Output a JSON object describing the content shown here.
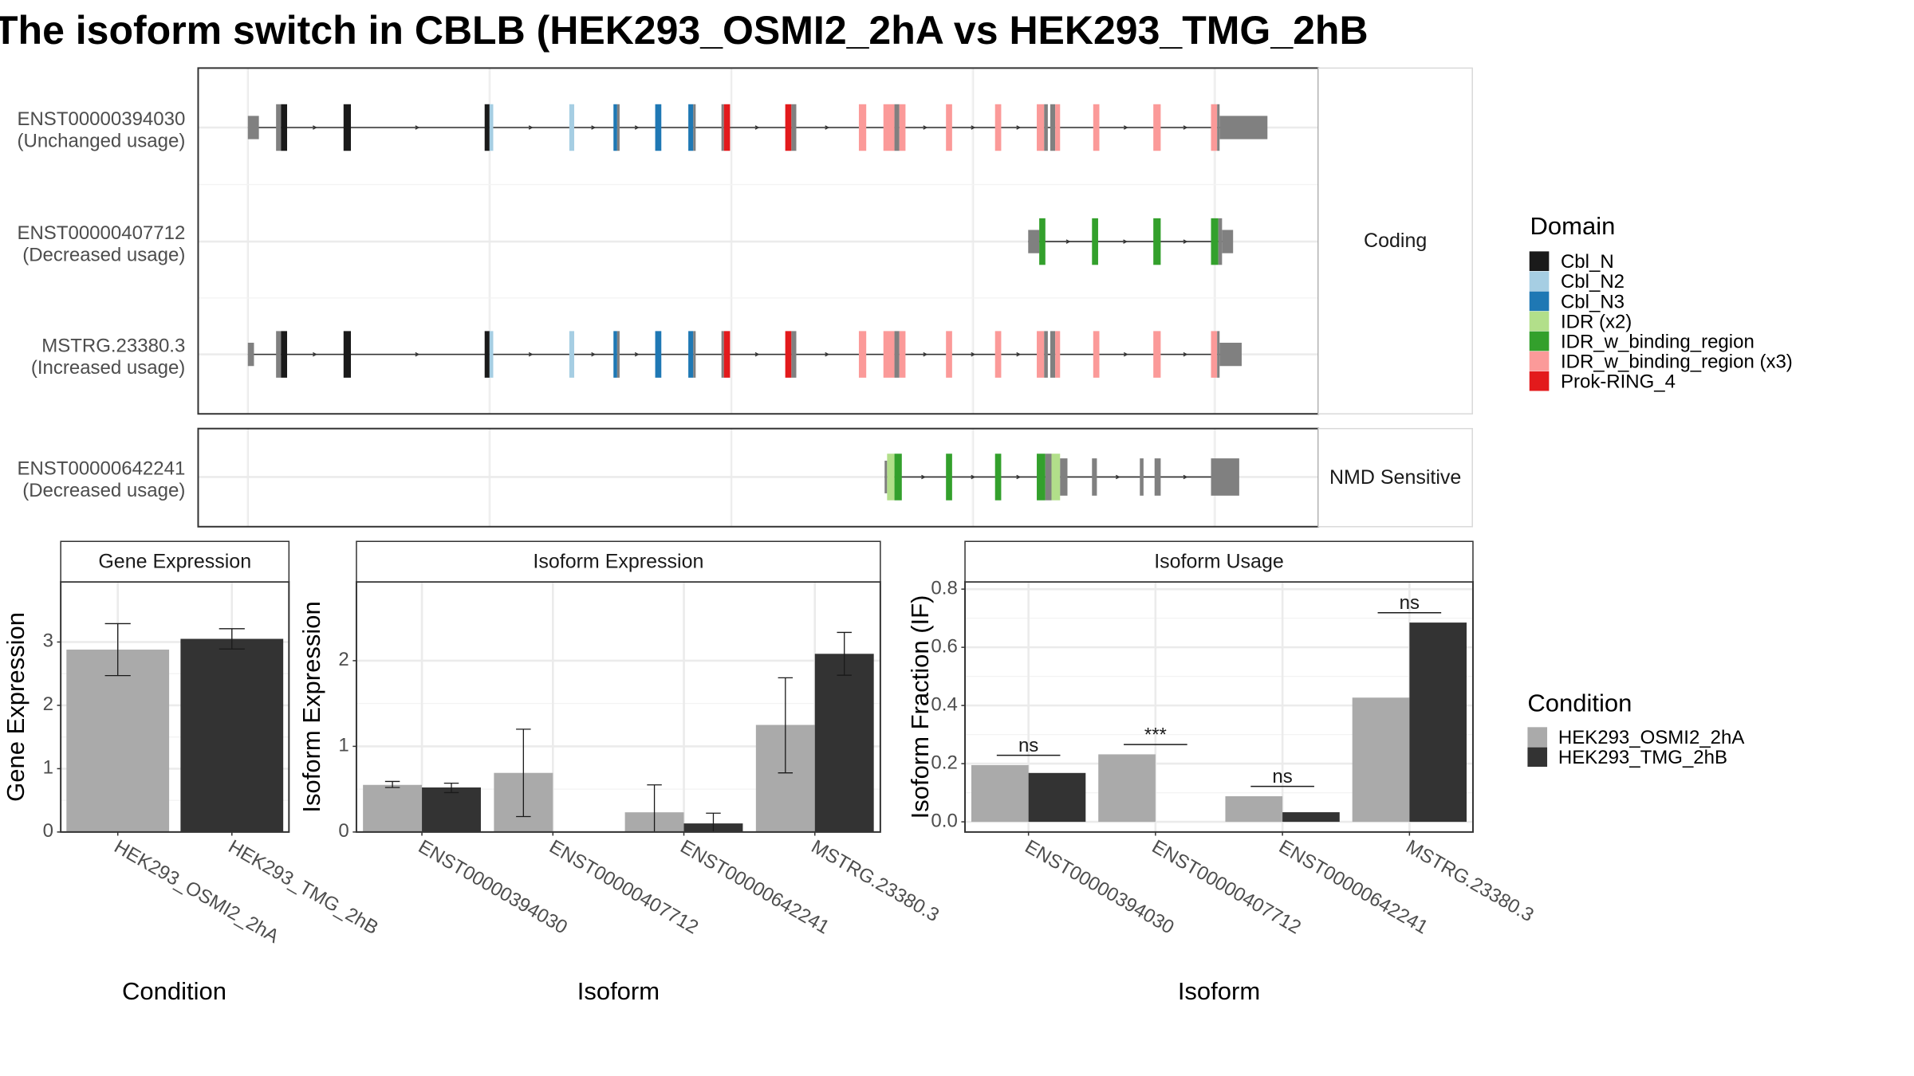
{
  "title": "The isoform switch in CBLB (HEK293_OSMI2_2hA vs HEK293_TMG_2hB",
  "colors": {
    "Cbl_N": "#1a1a1a",
    "Cbl_N2": "#a6cee3",
    "Cbl_N3": "#1f78b4",
    "IDR (x2)": "#b2df8a",
    "IDR_w_binding_region": "#33a02c",
    "IDR_w_binding_region (x3)": "#fb9a99",
    "Prok-RING_4": "#e31a1c",
    "noncoding": "#808080",
    "cond1": "#aaaaaa",
    "cond2": "#333333"
  },
  "structure": {
    "panels": [
      {
        "label": "Coding",
        "tracks": [
          {
            "name": "ENST00000394030",
            "usage": "(Unchanged usage)",
            "intron": [
              202,
              1030
            ],
            "exons": [
              [
                202,
                211,
                "noncoding",
                0.5
              ],
              [
                225,
                229,
                "noncoding",
                1
              ],
              [
                229,
                234,
                "Cbl_N",
                1
              ],
              [
                280,
                286,
                "Cbl_N",
                1
              ],
              [
                395,
                399,
                "Cbl_N",
                1
              ],
              [
                399,
                402,
                "Cbl_N2",
                1
              ],
              [
                464,
                468,
                "Cbl_N2",
                1
              ],
              [
                500,
                503,
                "Cbl_N3",
                1
              ],
              [
                503,
                505,
                "noncoding",
                1
              ],
              [
                534,
                539,
                "Cbl_N3",
                1
              ],
              [
                561,
                565,
                "Cbl_N3",
                1
              ],
              [
                565,
                567,
                "noncoding",
                1
              ],
              [
                588,
                590,
                "noncoding",
                1
              ],
              [
                590,
                595,
                "Prok-RING_4",
                1
              ],
              [
                640,
                645,
                "Prok-RING_4",
                1
              ],
              [
                645,
                649,
                "noncoding",
                1
              ],
              [
                700,
                706,
                "IDR_w_binding_region (x3)",
                1
              ],
              [
                720,
                729,
                "IDR_w_binding_region (x3)",
                1
              ],
              [
                729,
                733,
                "noncoding",
                1
              ],
              [
                733,
                738,
                "IDR_w_binding_region (x3)",
                1
              ],
              [
                771,
                776,
                "IDR_w_binding_region (x3)",
                1
              ],
              [
                811,
                816,
                "IDR_w_binding_region (x3)",
                1
              ],
              [
                845,
                851,
                "IDR_w_binding_region (x3)",
                1
              ],
              [
                851,
                854,
                "noncoding",
                1
              ],
              [
                856,
                860,
                "noncoding",
                1
              ],
              [
                860,
                864,
                "IDR_w_binding_region (x3)",
                1
              ],
              [
                891,
                896,
                "IDR_w_binding_region (x3)",
                1
              ],
              [
                940,
                946,
                "IDR_w_binding_region (x3)",
                1
              ],
              [
                987,
                992,
                "IDR_w_binding_region (x3)",
                1
              ],
              [
                992,
                994,
                "noncoding",
                1
              ],
              [
                994,
                1033,
                "noncoding",
                0.5
              ]
            ]
          },
          {
            "name": "ENST00000407712",
            "usage": "(Decreased usage)",
            "intron": [
              838,
              1003
            ],
            "exons": [
              [
                838,
                847,
                "noncoding",
                0.5
              ],
              [
                847,
                852,
                "IDR_w_binding_region",
                1
              ],
              [
                890,
                895,
                "IDR_w_binding_region",
                1
              ],
              [
                940,
                946,
                "IDR_w_binding_region",
                1
              ],
              [
                987,
                993,
                "IDR_w_binding_region",
                1
              ],
              [
                993,
                996,
                "noncoding",
                1
              ],
              [
                996,
                1005,
                "noncoding",
                0.5
              ]
            ]
          },
          {
            "name": "MSTRG.23380.3",
            "usage": "(Increased usage)",
            "intron": [
              202,
              1010
            ],
            "exons": [
              [
                202,
                207,
                "noncoding",
                0.5
              ],
              [
                225,
                229,
                "noncoding",
                1
              ],
              [
                229,
                234,
                "Cbl_N",
                1
              ],
              [
                280,
                286,
                "Cbl_N",
                1
              ],
              [
                395,
                399,
                "Cbl_N",
                1
              ],
              [
                399,
                402,
                "Cbl_N2",
                1
              ],
              [
                464,
                468,
                "Cbl_N2",
                1
              ],
              [
                500,
                503,
                "Cbl_N3",
                1
              ],
              [
                503,
                505,
                "noncoding",
                1
              ],
              [
                534,
                539,
                "Cbl_N3",
                1
              ],
              [
                561,
                565,
                "Cbl_N3",
                1
              ],
              [
                565,
                567,
                "noncoding",
                1
              ],
              [
                588,
                590,
                "noncoding",
                1
              ],
              [
                590,
                595,
                "Prok-RING_4",
                1
              ],
              [
                640,
                645,
                "Prok-RING_4",
                1
              ],
              [
                645,
                649,
                "noncoding",
                1
              ],
              [
                700,
                706,
                "IDR_w_binding_region (x3)",
                1
              ],
              [
                720,
                729,
                "IDR_w_binding_region (x3)",
                1
              ],
              [
                729,
                733,
                "noncoding",
                1
              ],
              [
                733,
                738,
                "IDR_w_binding_region (x3)",
                1
              ],
              [
                771,
                776,
                "IDR_w_binding_region (x3)",
                1
              ],
              [
                811,
                816,
                "IDR_w_binding_region (x3)",
                1
              ],
              [
                845,
                851,
                "IDR_w_binding_region (x3)",
                1
              ],
              [
                851,
                854,
                "noncoding",
                1
              ],
              [
                856,
                860,
                "noncoding",
                1
              ],
              [
                860,
                864,
                "IDR_w_binding_region (x3)",
                1
              ],
              [
                891,
                896,
                "IDR_w_binding_region (x3)",
                1
              ],
              [
                940,
                946,
                "IDR_w_binding_region (x3)",
                1
              ],
              [
                987,
                992,
                "IDR_w_binding_region (x3)",
                1
              ],
              [
                992,
                994,
                "noncoding",
                1
              ],
              [
                994,
                1012,
                "noncoding",
                0.5
              ]
            ]
          }
        ]
      },
      {
        "label": "NMD Sensitive",
        "tracks": [
          {
            "name": "ENST00000642241",
            "usage": "(Decreased usage)",
            "intron": [
              721,
              1008
            ],
            "exons": [
              [
                721,
                723,
                "noncoding",
                0.7
              ],
              [
                723,
                729,
                "IDR (x2)",
                1
              ],
              [
                729,
                735,
                "IDR_w_binding_region",
                1
              ],
              [
                771,
                776,
                "IDR_w_binding_region",
                1
              ],
              [
                811,
                816,
                "IDR_w_binding_region",
                1
              ],
              [
                845,
                852,
                "IDR_w_binding_region",
                1
              ],
              [
                852,
                857,
                "noncoding",
                1
              ],
              [
                857,
                864,
                "IDR (x2)",
                1
              ],
              [
                864,
                870,
                "noncoding",
                0.8
              ],
              [
                890,
                894,
                "noncoding",
                0.8
              ],
              [
                929,
                932,
                "noncoding",
                0.8
              ],
              [
                941,
                946,
                "noncoding",
                0.8
              ],
              [
                987,
                1010,
                "noncoding",
                0.8
              ]
            ]
          }
        ]
      }
    ]
  },
  "legend_domain": {
    "title": "Domain",
    "items": [
      "Cbl_N",
      "Cbl_N2",
      "Cbl_N3",
      "IDR (x2)",
      "IDR_w_binding_region",
      "IDR_w_binding_region (x3)",
      "Prok-RING_4"
    ]
  },
  "legend_condition": {
    "title": "Condition",
    "items": [
      "HEK293_OSMI2_2hA",
      "HEK293_TMG_2hB"
    ]
  },
  "chart_data": [
    {
      "type": "bar",
      "title": "Gene Expression",
      "xlabel": "Condition",
      "ylabel": "Gene Expression",
      "ylim": [
        0,
        3.95
      ],
      "yticks": [
        0,
        1,
        2,
        3
      ],
      "categories": [
        "HEK293_OSMI2_2hA",
        "HEK293_TMG_2hB"
      ],
      "values": [
        2.88,
        3.05
      ],
      "errors": [
        [
          2.47,
          3.29
        ],
        [
          2.89,
          3.21
        ]
      ]
    },
    {
      "type": "bar",
      "title": "Isoform Expression",
      "xlabel": "Isoform",
      "ylabel": "Isoform Expression",
      "ylim": [
        0,
        2.92
      ],
      "yticks": [
        0,
        1,
        2
      ],
      "categories": [
        "ENST00000394030",
        "ENST00000407712",
        "ENST00000642241",
        "MSTRG.23380.3"
      ],
      "series": [
        {
          "name": "HEK293_OSMI2_2hA",
          "values": [
            0.55,
            0.69,
            0.23,
            1.25
          ],
          "errors": [
            [
              0.52,
              0.59
            ],
            [
              0.18,
              1.2
            ],
            [
              0.0,
              0.55
            ],
            [
              0.69,
              1.8
            ]
          ]
        },
        {
          "name": "HEK293_TMG_2hB",
          "values": [
            0.52,
            0.0,
            0.1,
            2.08
          ],
          "errors": [
            [
              0.46,
              0.57
            ],
            [
              0.0,
              0.0
            ],
            [
              0.0,
              0.22
            ],
            [
              1.83,
              2.33
            ]
          ]
        }
      ]
    },
    {
      "type": "bar",
      "title": "Isoform Usage",
      "xlabel": "Isoform",
      "ylabel": "Isoform Fraction (IF)",
      "ylim": [
        -0.035,
        0.825
      ],
      "yticks": [
        0.0,
        0.2,
        0.4,
        0.6,
        0.8
      ],
      "categories": [
        "ENST00000394030",
        "ENST00000407712",
        "ENST00000642241",
        "MSTRG.23380.3"
      ],
      "series": [
        {
          "name": "HEK293_OSMI2_2hA",
          "values": [
            0.195,
            0.232,
            0.088,
            0.427
          ]
        },
        {
          "name": "HEK293_TMG_2hB",
          "values": [
            0.168,
            0.0,
            0.033,
            0.685
          ]
        }
      ],
      "significance": [
        "ns",
        "***",
        "ns",
        "ns"
      ]
    }
  ]
}
